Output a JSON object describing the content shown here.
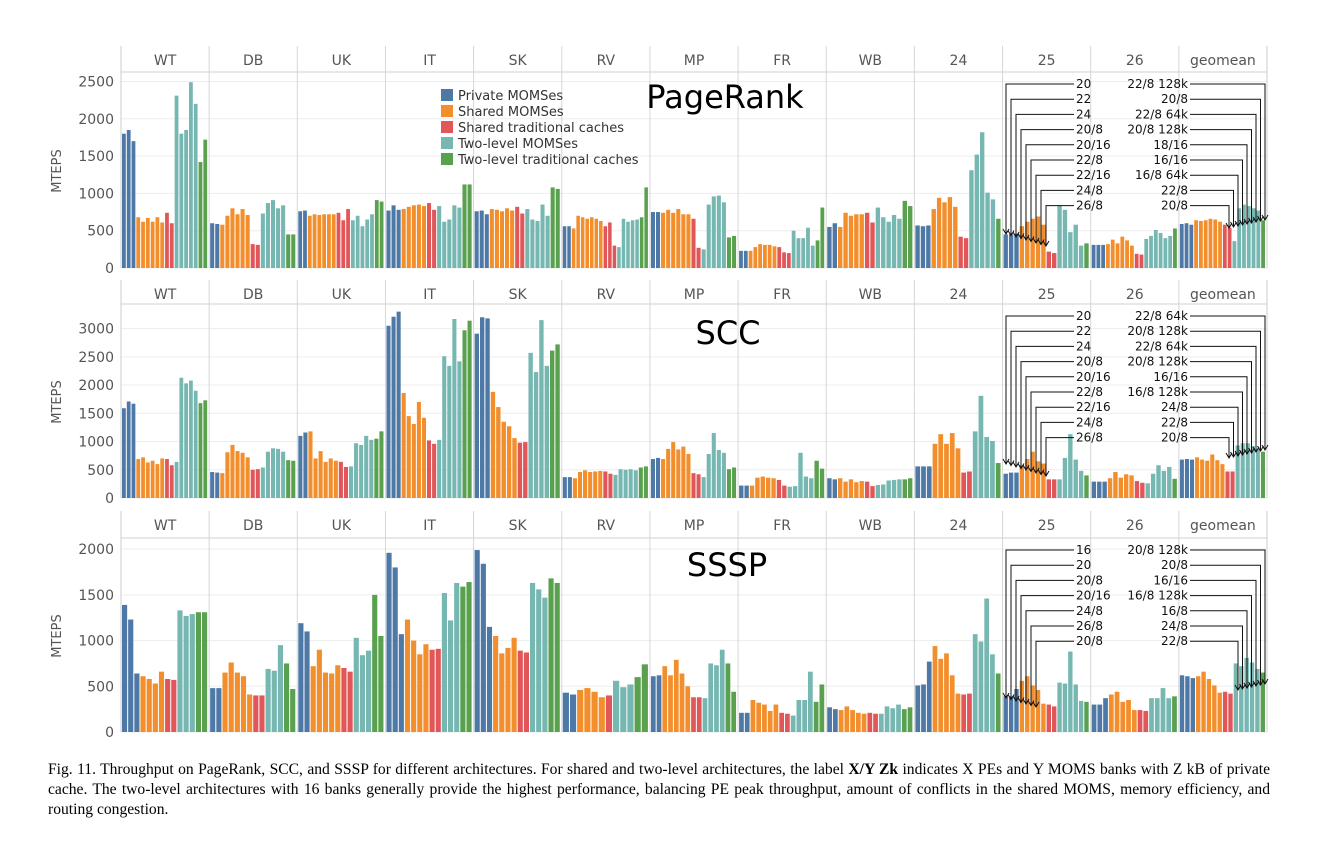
{
  "colors": {
    "private": "#4E79A7",
    "shared": "#F28E2B",
    "shared_traditional": "#E15759",
    "two_level": "#76B7B2",
    "two_level_traditional": "#59A14F"
  },
  "legend": [
    {
      "label": "Private MOMSes",
      "key": "private"
    },
    {
      "label": "Shared MOMSes",
      "key": "shared"
    },
    {
      "label": "Shared traditional caches",
      "key": "shared_traditional"
    },
    {
      "label": "Two-level MOMSes",
      "key": "two_level"
    },
    {
      "label": "Two-level traditional caches",
      "key": "two_level_traditional"
    }
  ],
  "chart_data": [
    {
      "type": "bar",
      "title": "PageRank",
      "ylabel": "MTEPS",
      "ylim": [
        0,
        2600
      ],
      "yticks": [
        0,
        500,
        1000,
        1500,
        2000,
        2500
      ],
      "grid": true,
      "categories": [
        "WT",
        "DB",
        "UK",
        "IT",
        "SK",
        "RV",
        "MP",
        "FR",
        "WB",
        "24",
        "25",
        "26",
        "geomean"
      ],
      "series": {
        "WT": [
          1800,
          1850,
          1700,
          680,
          620,
          670,
          620,
          680,
          610,
          740,
          600,
          2310,
          1800,
          1850,
          2490,
          2200,
          1420,
          1720
        ],
        "DB": [
          600,
          590,
          580,
          700,
          800,
          720,
          790,
          710,
          320,
          310,
          730,
          870,
          910,
          800,
          840,
          450,
          450
        ],
        "UK": [
          760,
          770,
          700,
          720,
          710,
          720,
          720,
          720,
          740,
          640,
          790,
          640,
          700,
          560,
          650,
          720,
          910,
          890
        ],
        "IT": [
          770,
          840,
          780,
          790,
          820,
          840,
          850,
          830,
          870,
          780,
          830,
          620,
          650,
          840,
          810,
          1120,
          1120
        ],
        "SK": [
          760,
          770,
          720,
          790,
          780,
          760,
          800,
          770,
          820,
          730,
          790,
          650,
          630,
          850,
          700,
          1080,
          1060
        ],
        "RV": [
          560,
          560,
          530,
          700,
          680,
          660,
          680,
          660,
          630,
          560,
          610,
          300,
          280,
          660,
          620,
          640,
          650,
          680,
          1080
        ],
        "MP": [
          750,
          750,
          740,
          780,
          740,
          790,
          720,
          720,
          660,
          270,
          250,
          850,
          960,
          970,
          880,
          410,
          430
        ],
        "FR": [
          230,
          230,
          230,
          280,
          320,
          310,
          310,
          290,
          280,
          210,
          200,
          500,
          400,
          400,
          540,
          300,
          370,
          810
        ],
        "WB": [
          550,
          600,
          550,
          740,
          700,
          720,
          720,
          740,
          610,
          810,
          680,
          620,
          710,
          660,
          900,
          830
        ],
        "24": [
          570,
          560,
          570,
          790,
          940,
          880,
          950,
          820,
          420,
          400,
          1310,
          1520,
          1820,
          1010,
          920,
          660
        ],
        "25": [
          450,
          450,
          460,
          560,
          620,
          660,
          690,
          580,
          220,
          200,
          840,
          780,
          480,
          580,
          300,
          330
        ],
        "26": [
          310,
          310,
          310,
          320,
          380,
          330,
          420,
          370,
          300,
          190,
          180,
          390,
          430,
          510,
          470,
          400,
          430,
          530
        ],
        "geomean": [
          590,
          600,
          580,
          640,
          630,
          640,
          660,
          650,
          620,
          580,
          540,
          360,
          800,
          850,
          830,
          800,
          770,
          640
        ]
      },
      "annotations": {
        "left": [
          "20",
          "22",
          "24",
          "20/8",
          "20/16",
          "22/8",
          "22/16",
          "24/8",
          "26/8"
        ],
        "right": [
          "22/8 128k",
          "20/8",
          "22/8 64k",
          "20/8 128k",
          "18/16",
          "16/16",
          "16/8 64k",
          "22/8",
          "20/8"
        ]
      }
    },
    {
      "type": "bar",
      "title": "SCC",
      "ylabel": "MTEPS",
      "ylim": [
        0,
        3400
      ],
      "yticks": [
        0,
        500,
        1000,
        1500,
        2000,
        2500,
        3000
      ],
      "grid": true,
      "categories": [
        "WT",
        "DB",
        "UK",
        "IT",
        "SK",
        "RV",
        "MP",
        "FR",
        "WB",
        "24",
        "25",
        "26",
        "geomean"
      ],
      "series": {
        "WT": [
          1590,
          1710,
          1670,
          690,
          720,
          630,
          660,
          600,
          700,
          690,
          580,
          640,
          2130,
          2030,
          2080,
          1900,
          1680,
          1730
        ],
        "DB": [
          460,
          450,
          440,
          810,
          940,
          830,
          800,
          720,
          500,
          510,
          540,
          820,
          880,
          870,
          820,
          670,
          660
        ],
        "UK": [
          1100,
          1160,
          1180,
          700,
          830,
          640,
          700,
          660,
          640,
          550,
          560,
          970,
          940,
          1100,
          1030,
          1050,
          1180
        ],
        "IT": [
          3050,
          3210,
          3300,
          1860,
          1450,
          1310,
          1700,
          1420,
          1020,
          960,
          1030,
          2510,
          2340,
          3170,
          2420,
          2970,
          3140
        ],
        "SK": [
          2910,
          3200,
          3180,
          1880,
          1610,
          1350,
          1270,
          1060,
          980,
          990,
          2570,
          2230,
          3150,
          2340,
          2610,
          2720
        ],
        "RV": [
          370,
          370,
          350,
          460,
          490,
          460,
          470,
          480,
          470,
          430,
          410,
          510,
          500,
          510,
          490,
          540,
          560
        ],
        "MP": [
          690,
          710,
          690,
          870,
          990,
          860,
          910,
          780,
          440,
          420,
          370,
          780,
          1150,
          850,
          800,
          510,
          540
        ],
        "FR": [
          220,
          220,
          220,
          360,
          380,
          360,
          350,
          320,
          220,
          200,
          210,
          800,
          380,
          350,
          660,
          520
        ],
        "WB": [
          350,
          330,
          350,
          290,
          330,
          280,
          300,
          290,
          210,
          230,
          240,
          310,
          320,
          330,
          330,
          350
        ],
        "24": [
          560,
          560,
          560,
          960,
          1130,
          960,
          1150,
          880,
          450,
          470,
          1180,
          1810,
          1080,
          1010,
          620
        ],
        "25": [
          430,
          450,
          450,
          580,
          690,
          820,
          650,
          610,
          330,
          330,
          330,
          710,
          1130,
          680,
          480,
          400
        ],
        "26": [
          290,
          290,
          290,
          350,
          460,
          360,
          420,
          400,
          300,
          270,
          260,
          430,
          580,
          480,
          550,
          340
        ],
        "geomean": [
          680,
          690,
          680,
          720,
          680,
          660,
          770,
          670,
          600,
          470,
          470,
          930,
          970,
          970,
          920,
          870,
          820
        ]
      },
      "annotations": {
        "left": [
          "20",
          "22",
          "24",
          "20/8",
          "20/16",
          "22/8",
          "22/16",
          "24/8",
          "26/8"
        ],
        "right": [
          "22/8 64k",
          "20/8 128k",
          "22/8 64k",
          "20/8 128k",
          "16/16",
          "16/8 128k",
          "24/8",
          "22/8",
          "20/8"
        ]
      }
    },
    {
      "type": "bar",
      "title": "SSSP",
      "ylabel": "MTEPS",
      "ylim": [
        0,
        2100
      ],
      "yticks": [
        0,
        500,
        1000,
        1500,
        2000
      ],
      "grid": true,
      "categories": [
        "WT",
        "DB",
        "UK",
        "IT",
        "SK",
        "RV",
        "MP",
        "FR",
        "WB",
        "24",
        "25",
        "26",
        "geomean"
      ],
      "series": {
        "WT": [
          1390,
          1230,
          640,
          610,
          580,
          530,
          660,
          580,
          570,
          1330,
          1270,
          1290,
          1310,
          1310
        ],
        "DB": [
          480,
          480,
          650,
          760,
          650,
          610,
          410,
          400,
          400,
          690,
          670,
          950,
          750,
          470
        ],
        "UK": [
          1190,
          1100,
          720,
          900,
          650,
          640,
          730,
          700,
          660,
          1030,
          840,
          890,
          1500,
          1050
        ],
        "IT": [
          1960,
          1800,
          1070,
          1230,
          1000,
          850,
          960,
          900,
          910,
          1520,
          1220,
          1630,
          1590,
          1640
        ],
        "SK": [
          1990,
          1840,
          1150,
          1050,
          860,
          920,
          1030,
          890,
          870,
          1630,
          1560,
          1470,
          1680,
          1630
        ],
        "RV": [
          430,
          410,
          460,
          480,
          440,
          380,
          400,
          560,
          490,
          520,
          600,
          740
        ],
        "MP": [
          610,
          620,
          720,
          620,
          790,
          640,
          500,
          380,
          380,
          370,
          750,
          730,
          900,
          750,
          440
        ],
        "FR": [
          210,
          210,
          350,
          320,
          300,
          230,
          300,
          210,
          200,
          180,
          350,
          350,
          660,
          330,
          520
        ],
        "WB": [
          270,
          250,
          240,
          280,
          240,
          210,
          200,
          210,
          200,
          200,
          280,
          260,
          300,
          250,
          270
        ],
        "24": [
          510,
          520,
          770,
          940,
          800,
          860,
          620,
          420,
          410,
          420,
          1070,
          990,
          1460,
          850,
          640
        ],
        "25": [
          390,
          390,
          470,
          560,
          610,
          510,
          460,
          310,
          300,
          280,
          540,
          530,
          880,
          520,
          340,
          330
        ],
        "26": [
          300,
          300,
          370,
          410,
          440,
          330,
          350,
          240,
          240,
          230,
          370,
          370,
          480,
          370,
          390
        ],
        "geomean": [
          620,
          610,
          590,
          610,
          660,
          580,
          510,
          430,
          440,
          420,
          750,
          720,
          810,
          760,
          690,
          650
        ]
      },
      "annotations": {
        "left": [
          "16",
          "20",
          "20/8",
          "20/16",
          "24/8",
          "26/8",
          "20/8"
        ],
        "right": [
          "20/8 128k",
          "20/8",
          "16/16",
          "16/8 128k",
          "16/8",
          "24/8",
          "22/8"
        ]
      }
    }
  ],
  "caption": {
    "prefix": "Fig. 11.  Throughput on PageRank, SCC, and SSSP for different architectures. For shared and two-level architectures, the label ",
    "bold": "X/Y Zk",
    "suffix": " indicates X PEs and Y MOMS banks with Z kB of private cache. The two-level architectures with 16 banks generally provide the highest performance, balancing PE peak throughput, amount of conflicts in the shared MOMS, memory efficiency, and routing congestion."
  }
}
